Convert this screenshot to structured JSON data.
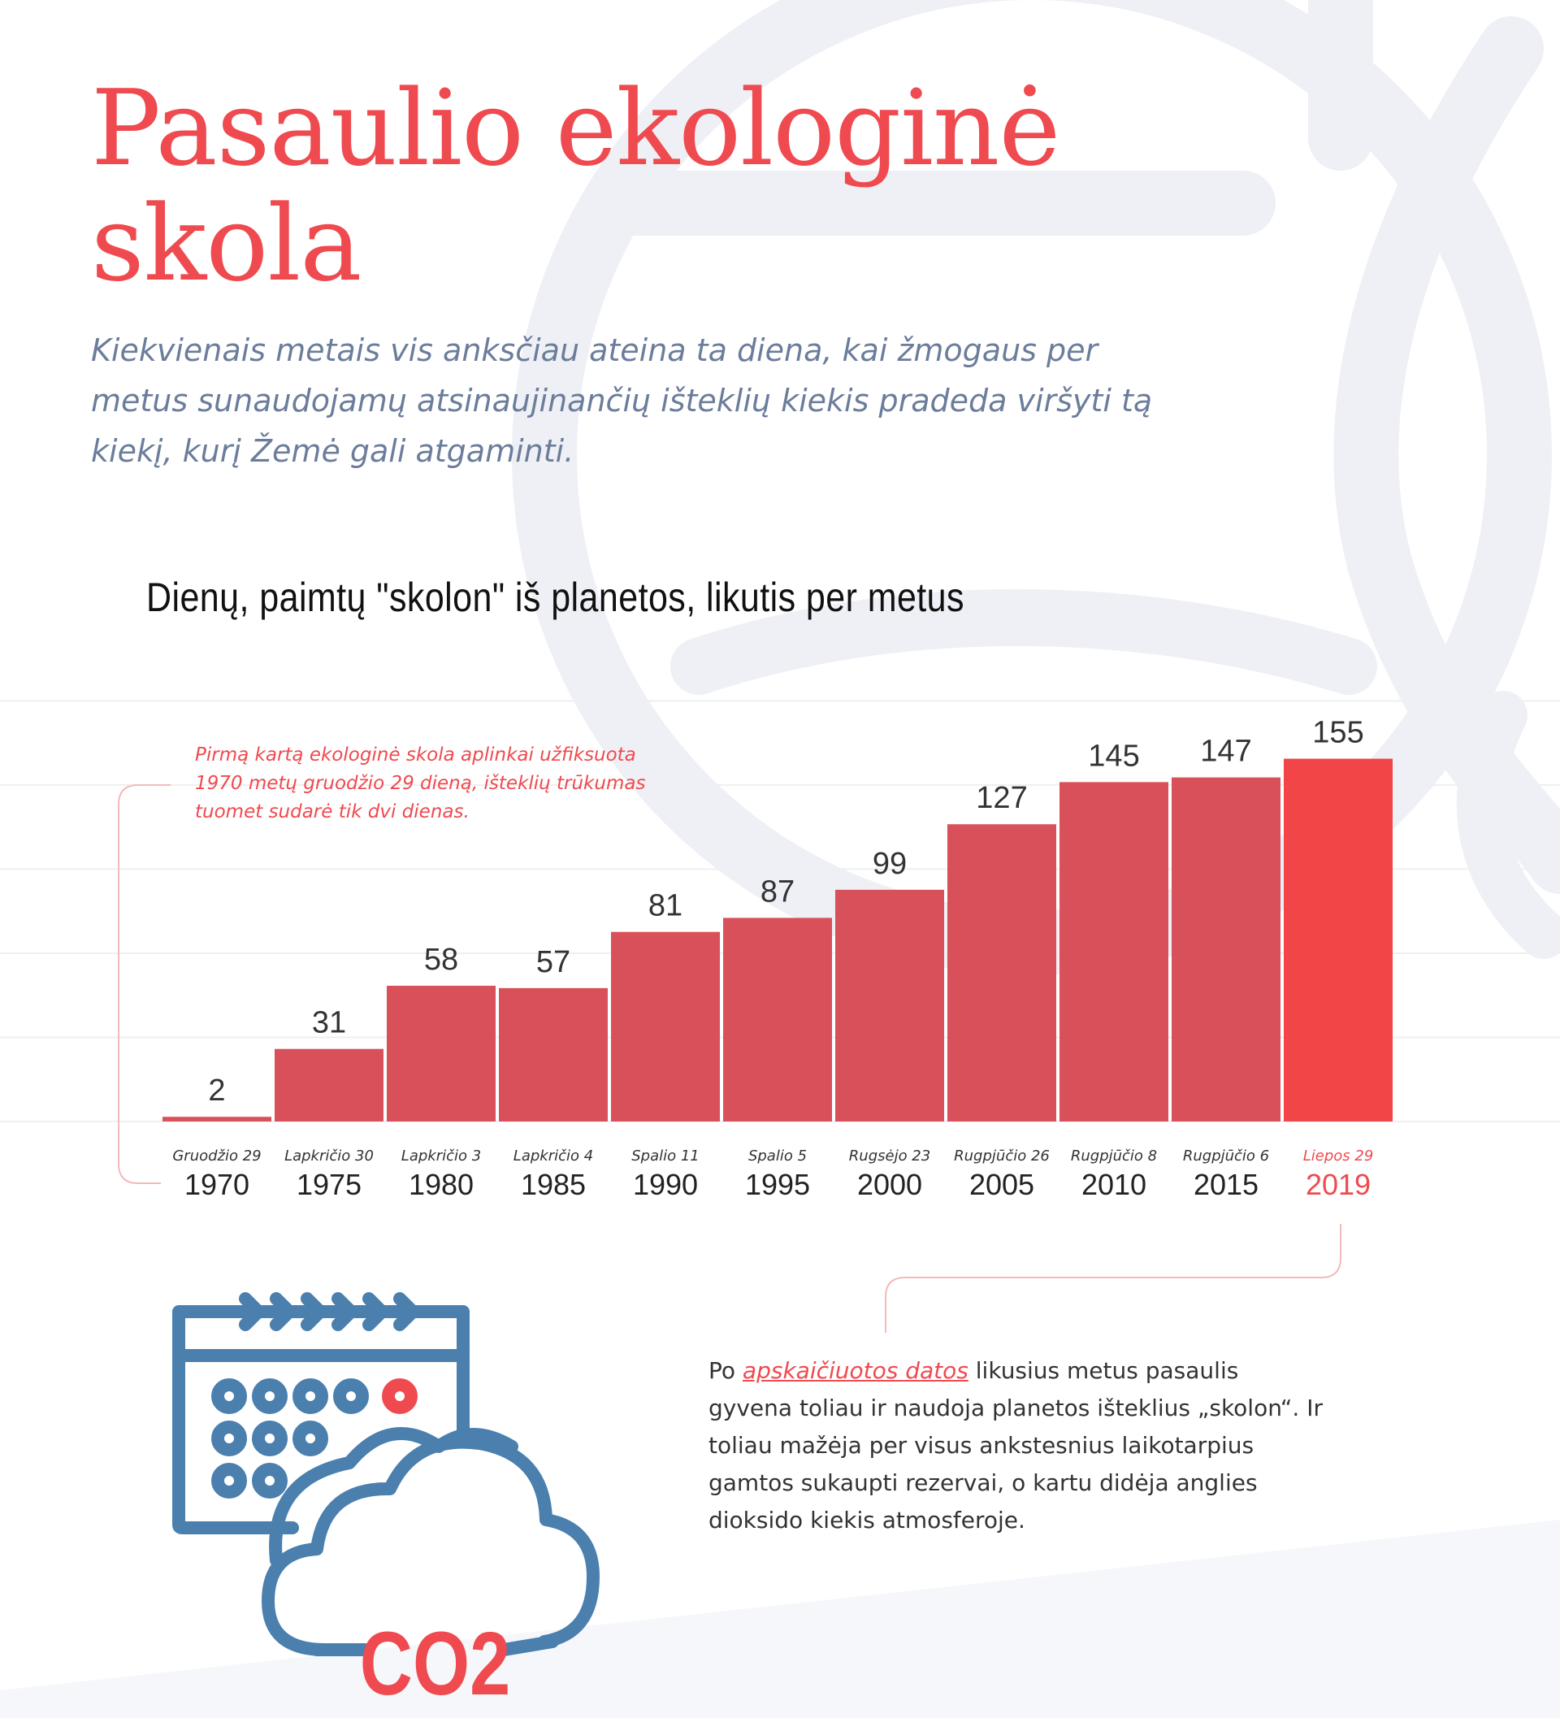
{
  "title": "Pasaulio ekologinė skola",
  "subtitle": "Kiekvienais metais vis anksčiau ateina ta diena, kai žmogaus per metus sunaudojamų atsinaujinančių išteklių kiekis pradeda viršyti tą kiekį, kurį Žemė gali atgaminti.",
  "annotation": "Pirmą kartą ekologinė skola aplinkai užfiksuota 1970 metų gruodžio 29 dieną, išteklių trūkumas tuomet sudarė tik dvi dienas.",
  "body": {
    "prefix": "Po ",
    "link": "apskaičiuotos datos",
    "suffix": " likusius metus pasaulis gyvena toliau ir naudoja planetos išteklius „skolon“. Ir toliau mažėja per visus ankstesnius laikotarpius gamtos sukaupti rezervai, o kartu didėja anglies dioksido kiekis atmosferoje."
  },
  "icon": {
    "name": "calendar-co2-cloud-icon",
    "label": "CO2"
  },
  "colors": {
    "accent": "#ef4a4f",
    "bar": "#d8505a",
    "bar_highlight": "#f24548",
    "icon_blue": "#4a7fae",
    "subtitle": "#6b7d9b",
    "background_shape": "#eef0f5"
  },
  "chart_data": {
    "type": "bar",
    "title": "Dienų, paimtų \"skolon\" iš planetos, likutis per metus",
    "categories": [
      "1970",
      "1975",
      "1980",
      "1985",
      "1990",
      "1995",
      "2000",
      "2005",
      "2010",
      "2015",
      "2019"
    ],
    "dates": [
      "Gruodžio 29",
      "Lapkričio 30",
      "Lapkričio 3",
      "Lapkričio 4",
      "Spalio 11",
      "Spalio 5",
      "Rugsėjo 23",
      "Rugpjūčio 26",
      "Rugpjūčio 8",
      "Rugpjūčio 6",
      "Liepos 29"
    ],
    "values": [
      2,
      31,
      58,
      57,
      81,
      87,
      99,
      127,
      145,
      147,
      155
    ],
    "highlight": "2019",
    "ylim": [
      0,
      200
    ],
    "grid": true,
    "xlabel": "",
    "ylabel": ""
  }
}
